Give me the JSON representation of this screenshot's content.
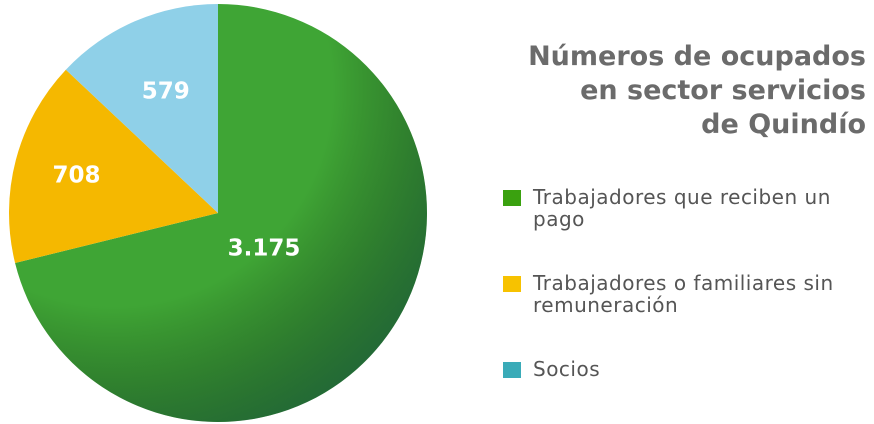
{
  "chart_data": {
    "type": "pie",
    "title": [
      "Números de ocupados",
      "en sector servicios",
      "de Quindío"
    ],
    "categories": [
      "Trabajadores que reciben un pago",
      "Trabajadores o familiares sin remuneración",
      "Socios"
    ],
    "values": [
      3175,
      708,
      579
    ],
    "value_labels": [
      "3.175",
      "708",
      "579"
    ],
    "colors": [
      "#3fa535",
      "#f5b800",
      "#8fd0e8"
    ],
    "legend_colors": [
      "#3aa10f",
      "#f7c200",
      "#3aabb8"
    ],
    "legend": "right"
  }
}
